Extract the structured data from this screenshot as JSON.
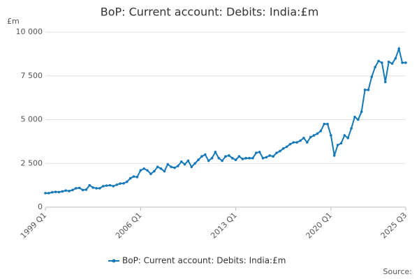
{
  "chart_data": {
    "type": "line",
    "title": "BoP: Current account: Debits: India:£m",
    "y_unit_label": "£m",
    "source_label": "Source:",
    "categories": [
      "1999 Q1",
      null,
      null,
      null,
      null,
      null,
      null,
      null,
      null,
      null,
      null,
      null,
      null,
      null,
      null,
      null,
      null,
      null,
      null,
      null,
      null,
      null,
      null,
      null,
      null,
      null,
      null,
      null,
      "2006 Q1",
      null,
      null,
      null,
      null,
      null,
      null,
      null,
      null,
      null,
      null,
      null,
      null,
      null,
      null,
      null,
      null,
      null,
      null,
      null,
      null,
      null,
      null,
      null,
      null,
      null,
      null,
      null,
      "2013 Q1",
      null,
      null,
      null,
      null,
      null,
      null,
      null,
      null,
      null,
      null,
      null,
      null,
      null,
      null,
      null,
      null,
      null,
      null,
      null,
      null,
      null,
      null,
      null,
      null,
      null,
      null,
      null,
      "2020 Q1",
      null,
      null,
      null,
      null,
      null,
      null,
      null,
      null,
      null,
      null,
      null,
      null,
      null,
      null,
      null,
      null,
      null,
      null,
      null,
      null,
      null,
      "2025 Q3"
    ],
    "series": [
      {
        "name": "BoP: Current account: Debits: India:£m",
        "color": "#1478b8",
        "values": [
          800,
          800,
          850,
          870,
          860,
          900,
          950,
          920,
          980,
          1080,
          1100,
          980,
          1000,
          1250,
          1120,
          1080,
          1080,
          1200,
          1230,
          1250,
          1200,
          1280,
          1350,
          1360,
          1450,
          1650,
          1750,
          1720,
          2100,
          2200,
          2100,
          1900,
          2050,
          2300,
          2200,
          2050,
          2450,
          2300,
          2250,
          2350,
          2600,
          2450,
          2650,
          2300,
          2500,
          2700,
          2900,
          3000,
          2650,
          2800,
          3150,
          2800,
          2650,
          2900,
          2950,
          2800,
          2700,
          2900,
          2750,
          2800,
          2800,
          2800,
          3100,
          3150,
          2800,
          2850,
          2950,
          2900,
          3100,
          3200,
          3350,
          3450,
          3600,
          3700,
          3700,
          3800,
          3950,
          3700,
          4000,
          4100,
          4200,
          4350,
          4750,
          4750,
          4100,
          2950,
          3550,
          3650,
          4100,
          3950,
          4500,
          5150,
          5000,
          5450,
          6700,
          6700,
          7450,
          8000,
          8350,
          8250,
          7150,
          8300,
          8200,
          8500,
          9050,
          8250,
          8250
        ]
      }
    ],
    "ylim": [
      0,
      10000
    ],
    "yticks": [
      0,
      {
        "value": 2500,
        "label": "2 500"
      },
      {
        "value": 5000,
        "label": "5 000"
      },
      {
        "value": 7500,
        "label": "7 500"
      },
      {
        "value": 10000,
        "label": "10 000"
      }
    ],
    "grid": true
  }
}
